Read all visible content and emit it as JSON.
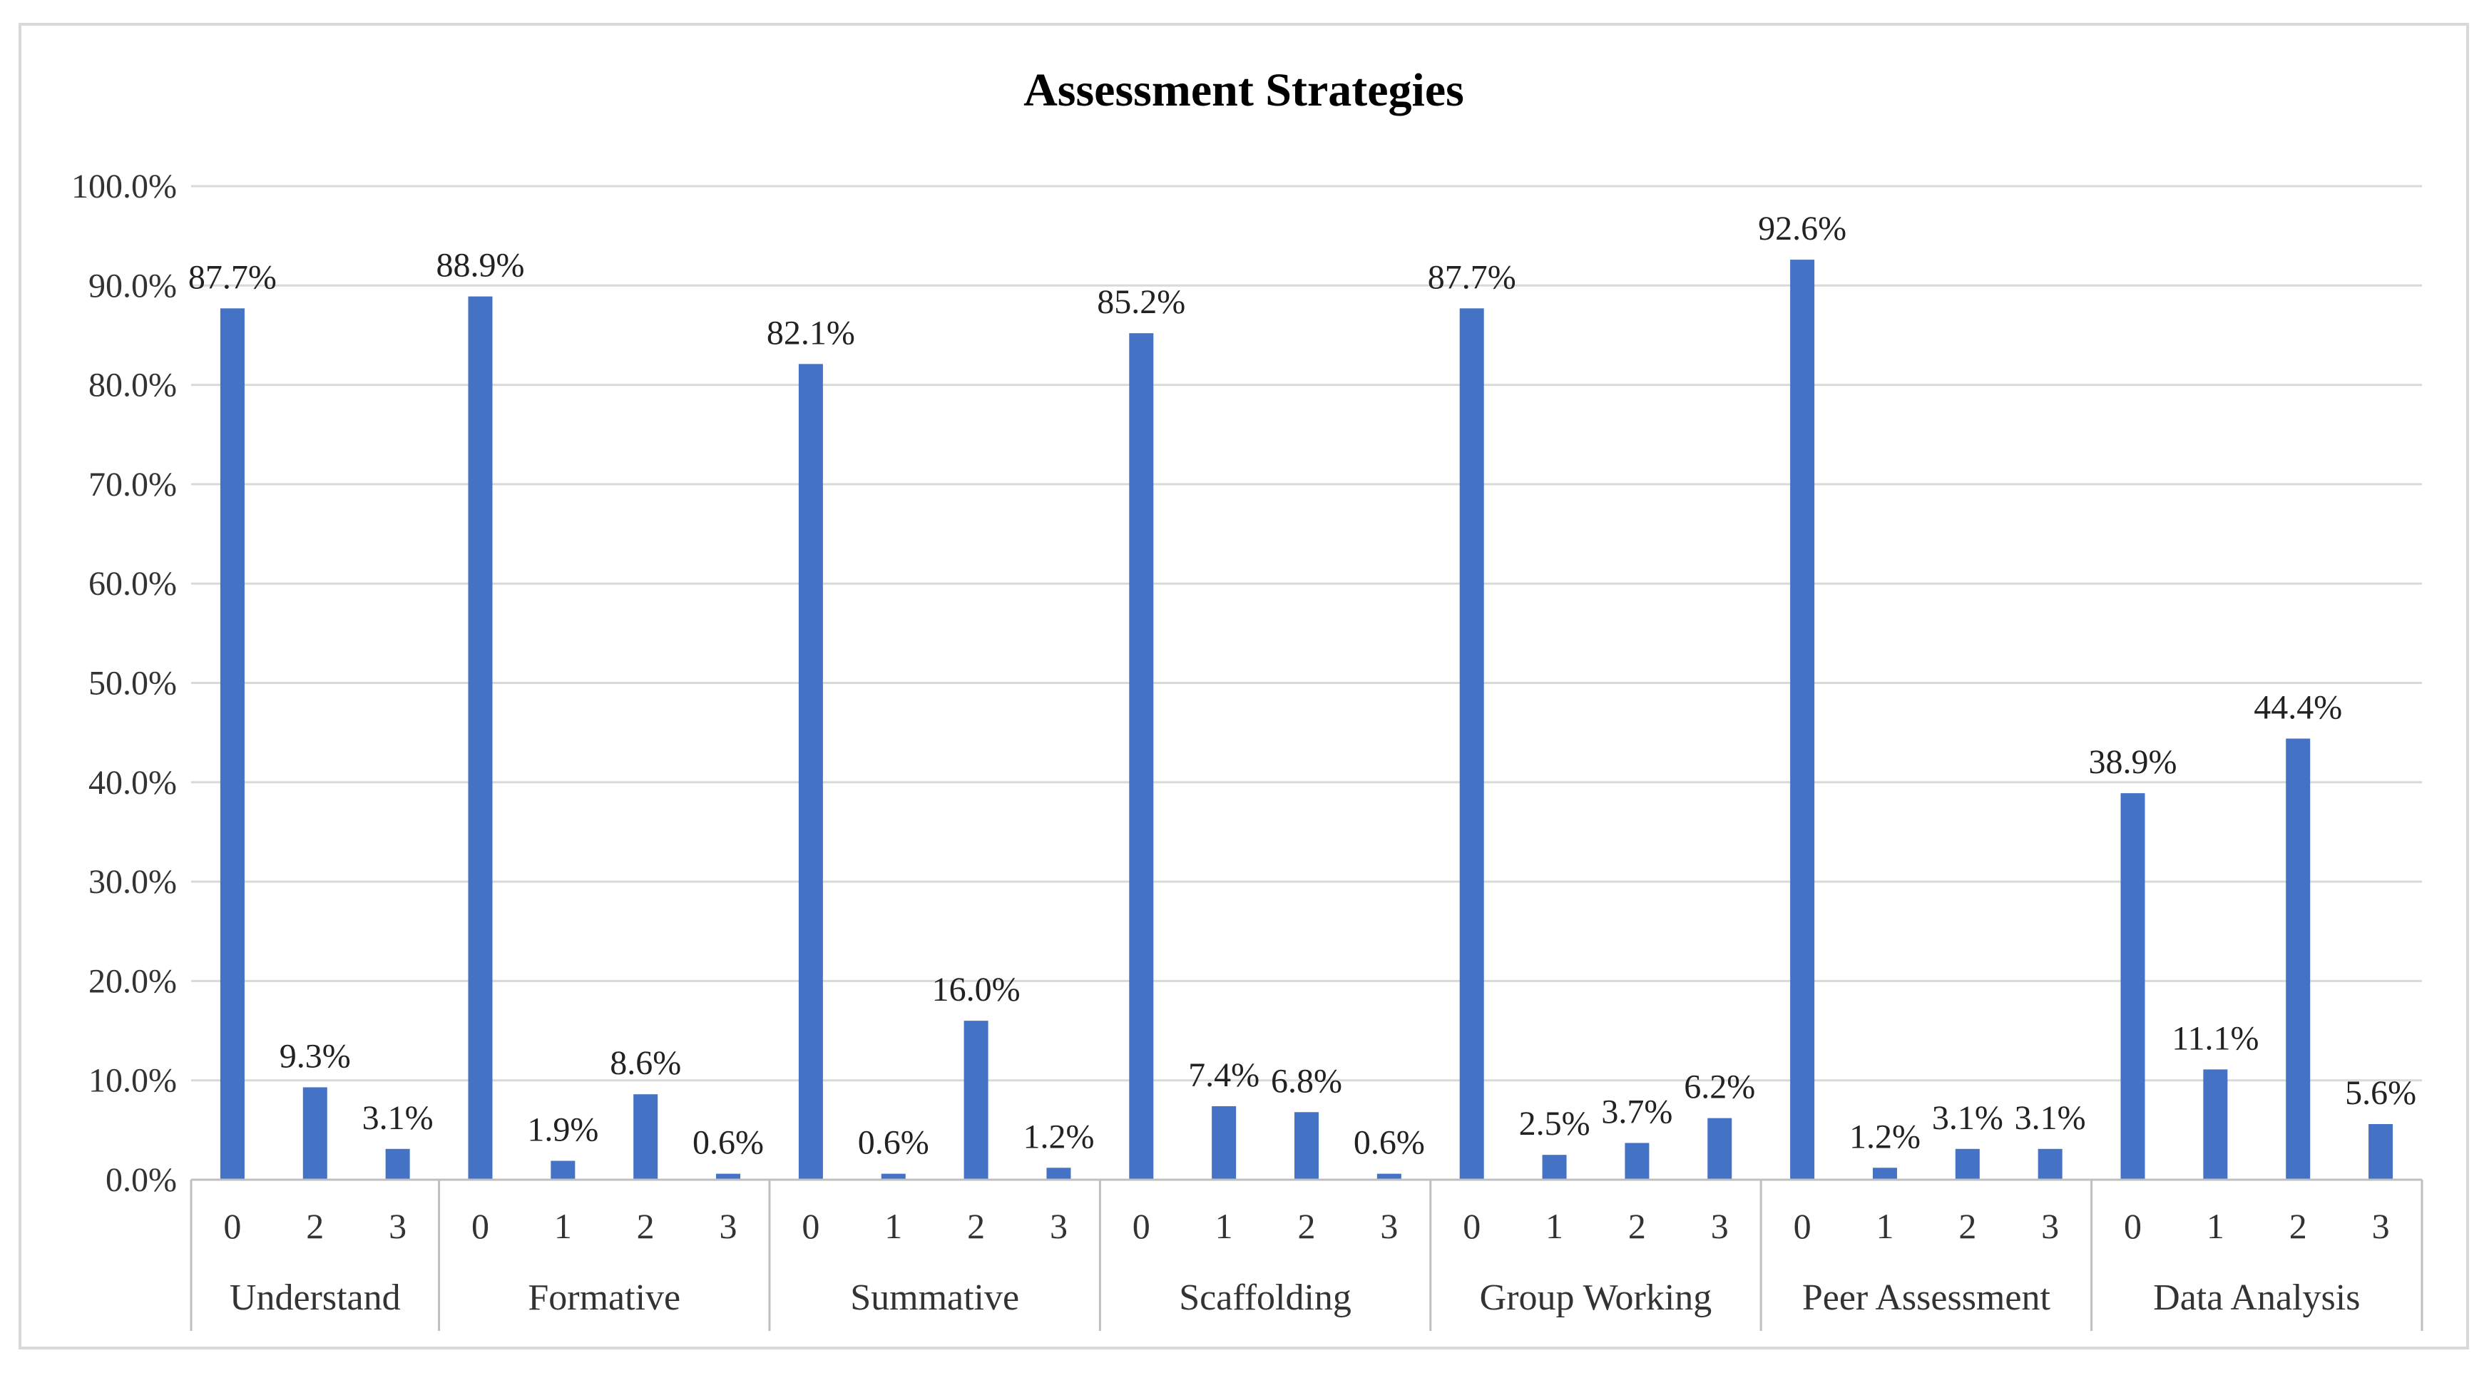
{
  "chart_data": {
    "type": "bar",
    "title": "Assessment Strategies",
    "xlabel": "",
    "ylabel": "",
    "ylim": [
      0,
      100
    ],
    "ytick_step": 10,
    "ytick_format": "percent_1dp",
    "grid": true,
    "legend": "none",
    "bar_color": "#4472c4",
    "groups": [
      {
        "name": "Understand",
        "categories": [
          "0",
          "2",
          "3"
        ],
        "values": [
          87.7,
          9.3,
          3.1
        ],
        "labels": [
          "87.7%",
          "9.3%",
          "3.1%"
        ]
      },
      {
        "name": "Formative",
        "categories": [
          "0",
          "1",
          "2",
          "3"
        ],
        "values": [
          88.9,
          1.9,
          8.6,
          0.6
        ],
        "labels": [
          "88.9%",
          "1.9%",
          "8.6%",
          "0.6%"
        ]
      },
      {
        "name": "Summative",
        "categories": [
          "0",
          "1",
          "2",
          "3"
        ],
        "values": [
          82.1,
          0.6,
          16.0,
          1.2
        ],
        "labels": [
          "82.1%",
          "0.6%",
          "16.0%",
          "1.2%"
        ]
      },
      {
        "name": "Scaffolding",
        "categories": [
          "0",
          "1",
          "2",
          "3"
        ],
        "values": [
          85.2,
          7.4,
          6.8,
          0.6
        ],
        "labels": [
          "85.2%",
          "7.4%",
          "6.8%",
          "0.6%"
        ]
      },
      {
        "name": "Group Working",
        "categories": [
          "0",
          "1",
          "2",
          "3"
        ],
        "values": [
          87.7,
          2.5,
          3.7,
          6.2
        ],
        "labels": [
          "87.7%",
          "2.5%",
          "3.7%",
          "6.2%"
        ]
      },
      {
        "name": "Peer Assessment",
        "categories": [
          "0",
          "1",
          "2",
          "3"
        ],
        "values": [
          92.6,
          1.2,
          3.1,
          3.1
        ],
        "labels": [
          "92.6%",
          "1.2%",
          "3.1%",
          "3.1%"
        ]
      },
      {
        "name": "Data Analysis",
        "categories": [
          "0",
          "1",
          "2",
          "3"
        ],
        "values": [
          38.9,
          11.1,
          44.4,
          5.6
        ],
        "labels": [
          "38.9%",
          "11.1%",
          "44.4%",
          "5.6%"
        ]
      }
    ]
  }
}
